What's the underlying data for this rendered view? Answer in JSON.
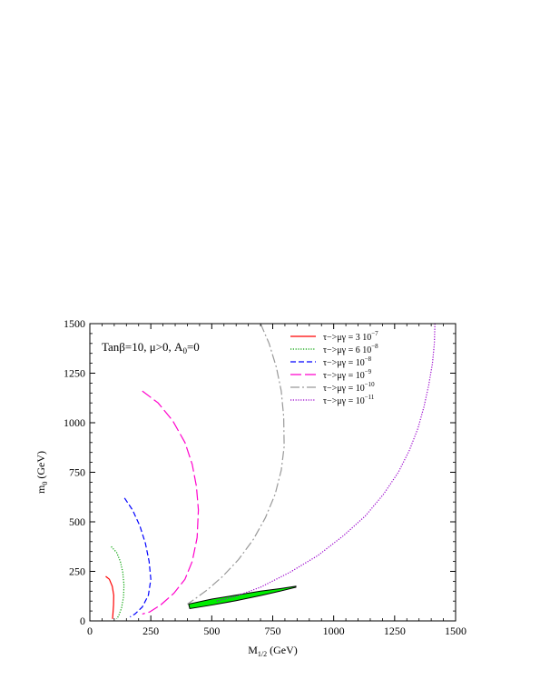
{
  "chart_data": {
    "type": "line",
    "x_axis": {
      "label": "M",
      "label_sub": "1/2",
      "label_rest": " (GeV)",
      "range": [
        0,
        1500
      ],
      "ticks": [
        0,
        250,
        500,
        750,
        1000,
        1250,
        1500
      ],
      "tick_labels": [
        "0",
        "250",
        "500",
        "750",
        "1000",
        "1250",
        "1500"
      ]
    },
    "y_axis": {
      "label": "m",
      "label_sub": "0",
      "label_rest": " (GeV)",
      "range": [
        0,
        1500
      ],
      "ticks": [
        0,
        250,
        500,
        750,
        1000,
        1250,
        1500
      ],
      "tick_labels": [
        "0",
        "250",
        "500",
        "750",
        "1000",
        "1250",
        "1500"
      ]
    },
    "annotation": {
      "text": "Tanβ=10, μ>0, A",
      "sub": "0",
      "rest": "=0"
    },
    "legend_position": "top-right",
    "series": [
      {
        "name": "τ−>μγ = 3 10",
        "name_exp": "−7",
        "color": "#ff0000",
        "style": "solid",
        "points": [
          [
            65,
            225
          ],
          [
            80,
            210
          ],
          [
            92,
            175
          ],
          [
            98,
            130
          ],
          [
            97,
            80
          ],
          [
            95,
            40
          ],
          [
            93,
            10
          ]
        ]
      },
      {
        "name": "τ−>μγ = 6 10",
        "name_exp": "−8",
        "color": "#00a000",
        "style": "dotted",
        "points": [
          [
            88,
            375
          ],
          [
            110,
            345
          ],
          [
            125,
            300
          ],
          [
            135,
            245
          ],
          [
            140,
            180
          ],
          [
            138,
            120
          ],
          [
            130,
            65
          ],
          [
            118,
            25
          ],
          [
            110,
            10
          ]
        ]
      },
      {
        "name": "τ−>μγ = 10",
        "name_exp": "−8",
        "color": "#0000ff",
        "style": "dashed",
        "points": [
          [
            142,
            620
          ],
          [
            175,
            560
          ],
          [
            205,
            480
          ],
          [
            228,
            390
          ],
          [
            243,
            300
          ],
          [
            250,
            210
          ],
          [
            240,
            130
          ],
          [
            215,
            70
          ],
          [
            185,
            35
          ],
          [
            165,
            20
          ]
        ]
      },
      {
        "name": "τ−>μγ = 10",
        "name_exp": "−9",
        "color": "#ff00cc",
        "style": "longdash",
        "points": [
          [
            215,
            1160
          ],
          [
            280,
            1100
          ],
          [
            340,
            1010
          ],
          [
            390,
            900
          ],
          [
            420,
            790
          ],
          [
            437,
            680
          ],
          [
            445,
            560
          ],
          [
            440,
            420
          ],
          [
            420,
            300
          ],
          [
            390,
            210
          ],
          [
            345,
            140
          ],
          [
            290,
            80
          ],
          [
            245,
            45
          ],
          [
            215,
            35
          ]
        ]
      },
      {
        "name": "τ−>μγ = 10",
        "name_exp": "−10",
        "color": "#999999",
        "style": "dashdot",
        "points": [
          [
            700,
            1500
          ],
          [
            735,
            1400
          ],
          [
            765,
            1280
          ],
          [
            785,
            1160
          ],
          [
            795,
            1030
          ],
          [
            797,
            880
          ],
          [
            785,
            760
          ],
          [
            760,
            640
          ],
          [
            720,
            520
          ],
          [
            670,
            410
          ],
          [
            610,
            310
          ],
          [
            545,
            225
          ],
          [
            480,
            155
          ],
          [
            430,
            110
          ],
          [
            400,
            85
          ]
        ]
      },
      {
        "name": "τ−>μγ = 10",
        "name_exp": "−11",
        "color": "#9900cc",
        "style": "dotted",
        "points": [
          [
            1415,
            1500
          ],
          [
            1413,
            1400
          ],
          [
            1405,
            1300
          ],
          [
            1390,
            1190
          ],
          [
            1370,
            1080
          ],
          [
            1345,
            970
          ],
          [
            1310,
            860
          ],
          [
            1265,
            750
          ],
          [
            1205,
            640
          ],
          [
            1130,
            530
          ],
          [
            1040,
            430
          ],
          [
            935,
            330
          ],
          [
            820,
            245
          ],
          [
            700,
            170
          ],
          [
            600,
            125
          ],
          [
            520,
            100
          ]
        ]
      }
    ],
    "band": {
      "color": "#00ee00",
      "edge_color": "#000000",
      "upper": [
        [
          405,
          85
        ],
        [
          500,
          110
        ],
        [
          600,
          130
        ],
        [
          700,
          150
        ],
        [
          780,
          163
        ],
        [
          845,
          175
        ]
      ],
      "lower": [
        [
          845,
          170
        ],
        [
          780,
          150
        ],
        [
          700,
          128
        ],
        [
          600,
          102
        ],
        [
          500,
          80
        ],
        [
          410,
          62
        ]
      ]
    }
  }
}
